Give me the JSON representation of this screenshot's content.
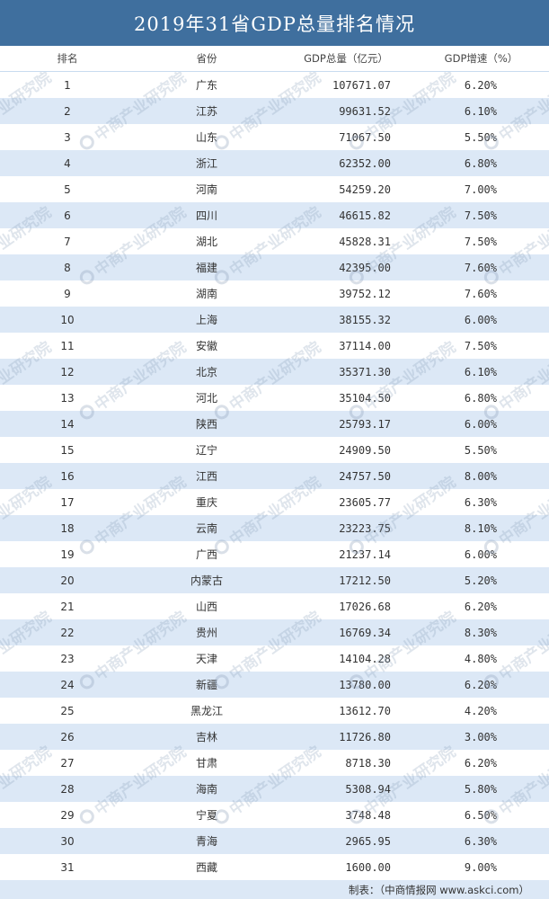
{
  "title": "2019年31省GDP总量排名情况",
  "headers": {
    "rank": "排名",
    "province": "省份",
    "gdp": "GDP总量（亿元）",
    "growth": "GDP增速（%）"
  },
  "rows": [
    {
      "rank": "1",
      "province": "广东",
      "gdp": "107671.07",
      "growth": "6.20%"
    },
    {
      "rank": "2",
      "province": "江苏",
      "gdp": "99631.52",
      "growth": "6.10%"
    },
    {
      "rank": "3",
      "province": "山东",
      "gdp": "71067.50",
      "growth": "5.50%"
    },
    {
      "rank": "4",
      "province": "浙江",
      "gdp": "62352.00",
      "growth": "6.80%"
    },
    {
      "rank": "5",
      "province": "河南",
      "gdp": "54259.20",
      "growth": "7.00%"
    },
    {
      "rank": "6",
      "province": "四川",
      "gdp": "46615.82",
      "growth": "7.50%"
    },
    {
      "rank": "7",
      "province": "湖北",
      "gdp": "45828.31",
      "growth": "7.50%"
    },
    {
      "rank": "8",
      "province": "福建",
      "gdp": "42395.00",
      "growth": "7.60%"
    },
    {
      "rank": "9",
      "province": "湖南",
      "gdp": "39752.12",
      "growth": "7.60%"
    },
    {
      "rank": "10",
      "province": "上海",
      "gdp": "38155.32",
      "growth": "6.00%"
    },
    {
      "rank": "11",
      "province": "安徽",
      "gdp": "37114.00",
      "growth": "7.50%"
    },
    {
      "rank": "12",
      "province": "北京",
      "gdp": "35371.30",
      "growth": "6.10%"
    },
    {
      "rank": "13",
      "province": "河北",
      "gdp": "35104.50",
      "growth": "6.80%"
    },
    {
      "rank": "14",
      "province": "陕西",
      "gdp": "25793.17",
      "growth": "6.00%"
    },
    {
      "rank": "15",
      "province": "辽宁",
      "gdp": "24909.50",
      "growth": "5.50%"
    },
    {
      "rank": "16",
      "province": "江西",
      "gdp": "24757.50",
      "growth": "8.00%"
    },
    {
      "rank": "17",
      "province": "重庆",
      "gdp": "23605.77",
      "growth": "6.30%"
    },
    {
      "rank": "18",
      "province": "云南",
      "gdp": "23223.75",
      "growth": "8.10%"
    },
    {
      "rank": "19",
      "province": "广西",
      "gdp": "21237.14",
      "growth": "6.00%"
    },
    {
      "rank": "20",
      "province": "内蒙古",
      "gdp": "17212.50",
      "growth": "5.20%"
    },
    {
      "rank": "21",
      "province": "山西",
      "gdp": "17026.68",
      "growth": "6.20%"
    },
    {
      "rank": "22",
      "province": "贵州",
      "gdp": "16769.34",
      "growth": "8.30%"
    },
    {
      "rank": "23",
      "province": "天津",
      "gdp": "14104.28",
      "growth": "4.80%"
    },
    {
      "rank": "24",
      "province": "新疆",
      "gdp": "13780.00",
      "growth": "6.20%"
    },
    {
      "rank": "25",
      "province": "黑龙江",
      "gdp": "13612.70",
      "growth": "4.20%"
    },
    {
      "rank": "26",
      "province": "吉林",
      "gdp": "11726.80",
      "growth": "3.00%"
    },
    {
      "rank": "27",
      "province": "甘肃",
      "gdp": "8718.30",
      "growth": "6.20%"
    },
    {
      "rank": "28",
      "province": "海南",
      "gdp": "5308.94",
      "growth": "5.80%"
    },
    {
      "rank": "29",
      "province": "宁夏",
      "gdp": "3748.48",
      "growth": "6.50%"
    },
    {
      "rank": "30",
      "province": "青海",
      "gdp": "2965.95",
      "growth": "6.30%"
    },
    {
      "rank": "31",
      "province": "西藏",
      "gdp": "1600.00",
      "growth": "9.00%"
    }
  ],
  "footer": "制表：（中商情报网 www.askci.com）",
  "watermark": "中商产业研究院",
  "colors": {
    "title_bg": "#3f6f9e",
    "stripe": "#dce8f6"
  }
}
